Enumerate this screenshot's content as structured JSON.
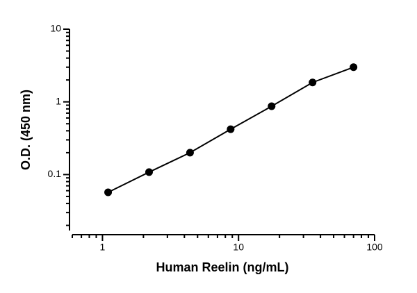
{
  "chart_data": {
    "type": "scatter",
    "x_label": "Human Reelin (ng/mL)",
    "y_label": "O.D. (450 nm)",
    "xscale": "log",
    "yscale": "log",
    "xlim": [
      0.6,
      100
    ],
    "ylim": [
      0.017,
      10
    ],
    "xticks": [
      1,
      10,
      100
    ],
    "yticks": [
      0.1,
      1,
      10
    ],
    "series": [
      {
        "color": "#000000",
        "line": true,
        "x": [
          1.1,
          2.2,
          4.4,
          8.75,
          17.5,
          35,
          70
        ],
        "values": [
          0.057,
          0.108,
          0.2,
          0.42,
          0.87,
          1.85,
          3.0
        ]
      }
    ]
  }
}
